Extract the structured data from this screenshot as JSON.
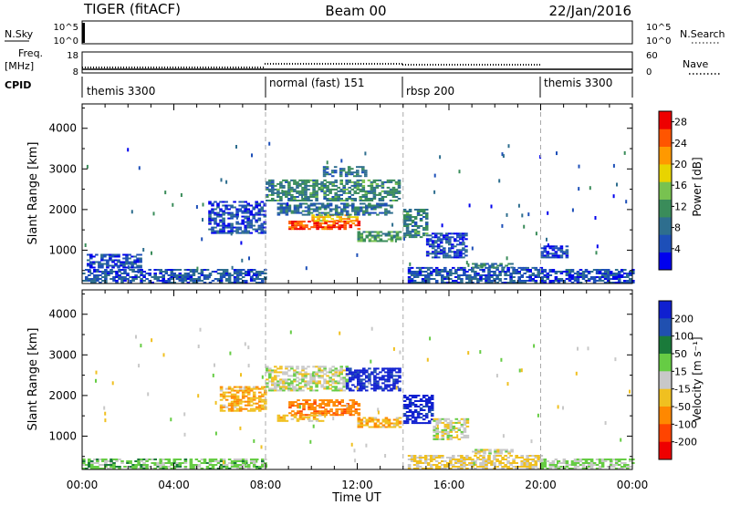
{
  "header": {
    "station": "TIGER (fitACF)",
    "beam": "Beam 00",
    "date": "22/Jan/2016"
  },
  "top_panels": {
    "nsky_label": "N.Sky",
    "nsky_ticks": [
      "10^5",
      "10^0"
    ],
    "nsearch_label": "N.Search",
    "freq_label_line1": "Freq.",
    "freq_label_line2": "[MHz]",
    "freq_ticks": [
      "18",
      "8"
    ],
    "nave_label": "Nave",
    "nave_ticks": [
      "60",
      "0"
    ],
    "cpid_label": "CPID",
    "cpid_segments": [
      {
        "label": "themis 3300",
        "start_hour": 0,
        "end_hour": 8
      },
      {
        "label": "normal (fast) 151",
        "start_hour": 8,
        "end_hour": 14
      },
      {
        "label": "rbsp 200",
        "start_hour": 14,
        "end_hour": 20
      },
      {
        "label": "themis 3300",
        "start_hour": 20,
        "end_hour": 24
      }
    ]
  },
  "colors": {
    "power_scale": [
      "#0000ee",
      "#1d4fb8",
      "#2e6e8e",
      "#3a8c5a",
      "#78c250",
      "#e8d400",
      "#ff9900",
      "#ff5500",
      "#ee0000"
    ],
    "velocity_scale": [
      "#1020d0",
      "#2050b0",
      "#1a7a3a",
      "#66cc44",
      "#c8c8c8",
      "#f0c020",
      "#ff8800",
      "#ff4400",
      "#ee0000"
    ],
    "gray_data": "#c0c0c0",
    "vline": "#aaaaaa"
  },
  "chart_data": [
    {
      "type": "heatmap",
      "title": "",
      "quantity": "Power",
      "xlabel": "",
      "ylabel": "Slant Range [km]",
      "xlim": [
        0,
        24
      ],
      "ylim": [
        180,
        4600
      ],
      "x_ticks": [
        "00:00",
        "04:00",
        "08:00",
        "12:00",
        "16:00",
        "20:00",
        "00:00"
      ],
      "y_ticks": [
        1000,
        2000,
        3000,
        4000
      ],
      "colorbar": {
        "label": "Power [dB]",
        "ticks": [
          4,
          8,
          12,
          16,
          20,
          24,
          28
        ],
        "range": [
          0,
          30
        ]
      },
      "regions": [
        {
          "t0": 0.0,
          "t1": 8.0,
          "r0": 180,
          "r1": 500,
          "value": 6
        },
        {
          "t0": 0.2,
          "t1": 2.5,
          "r0": 550,
          "r1": 900,
          "value": 5
        },
        {
          "t0": 5.5,
          "t1": 8.0,
          "r0": 1400,
          "r1": 2200,
          "value": 5
        },
        {
          "t0": 8.0,
          "t1": 13.8,
          "r0": 2200,
          "r1": 2700,
          "value": 10
        },
        {
          "t0": 10.5,
          "t1": 12.3,
          "r0": 2800,
          "r1": 3050,
          "value": 8
        },
        {
          "t0": 9.0,
          "t1": 12.0,
          "r0": 1500,
          "r1": 1700,
          "value": 26
        },
        {
          "t0": 10.0,
          "t1": 12.0,
          "r0": 1700,
          "r1": 1850,
          "value": 20
        },
        {
          "t0": 8.5,
          "t1": 13.5,
          "r0": 1850,
          "r1": 2150,
          "value": 8
        },
        {
          "t0": 12.0,
          "t1": 13.8,
          "r0": 1200,
          "r1": 1450,
          "value": 12
        },
        {
          "t0": 14.0,
          "t1": 15.0,
          "r0": 1300,
          "r1": 2000,
          "value": 10
        },
        {
          "t0": 15.0,
          "t1": 16.8,
          "r0": 800,
          "r1": 1400,
          "value": 5
        },
        {
          "t0": 14.2,
          "t1": 20.0,
          "r0": 180,
          "r1": 550,
          "value": 6
        },
        {
          "t0": 17.0,
          "t1": 18.8,
          "r0": 550,
          "r1": 650,
          "value": 9
        },
        {
          "t0": 20.0,
          "t1": 24.0,
          "r0": 180,
          "r1": 500,
          "value": 5
        },
        {
          "t0": 20.0,
          "t1": 21.2,
          "r0": 800,
          "r1": 1100,
          "value": 4
        }
      ]
    },
    {
      "type": "heatmap",
      "title": "",
      "quantity": "Velocity",
      "xlabel": "Time UT",
      "ylabel": "Slant Range [km]",
      "xlim": [
        0,
        24
      ],
      "ylim": [
        180,
        4600
      ],
      "x_ticks": [
        "00:00",
        "04:00",
        "08:00",
        "12:00",
        "16:00",
        "20:00",
        "00:00"
      ],
      "y_ticks": [
        1000,
        2000,
        3000,
        4000
      ],
      "colorbar": {
        "label": "Velocity [m s⁻¹]",
        "ticks": [
          "200",
          "100",
          "50",
          "15",
          "-15",
          "-50",
          "-100",
          "-200"
        ]
      },
      "regions": [
        {
          "t0": 0.0,
          "t1": 8.0,
          "r0": 180,
          "r1": 450,
          "value": 30
        },
        {
          "t0": 6.0,
          "t1": 8.0,
          "r0": 1600,
          "r1": 2200,
          "value": -40
        },
        {
          "t0": 8.0,
          "t1": 11.5,
          "r0": 2100,
          "r1": 2700,
          "value": 0
        },
        {
          "t0": 11.5,
          "t1": 13.8,
          "r0": 2100,
          "r1": 2650,
          "value": 220
        },
        {
          "t0": 9.0,
          "t1": 12.0,
          "r0": 1500,
          "r1": 1900,
          "value": -80
        },
        {
          "t0": 8.5,
          "t1": 10.5,
          "r0": 1350,
          "r1": 1500,
          "value": -30
        },
        {
          "t0": 12.0,
          "t1": 13.8,
          "r0": 1200,
          "r1": 1450,
          "value": -40
        },
        {
          "t0": 14.0,
          "t1": 15.3,
          "r0": 1300,
          "r1": 2000,
          "value": 220
        },
        {
          "t0": 15.3,
          "t1": 16.8,
          "r0": 900,
          "r1": 1400,
          "value": 0
        },
        {
          "t0": 14.2,
          "t1": 20.0,
          "r0": 180,
          "r1": 500,
          "value": -20
        },
        {
          "t0": 17.0,
          "t1": 18.8,
          "r0": 550,
          "r1": 650,
          "value": 0
        },
        {
          "t0": 20.0,
          "t1": 24.0,
          "r0": 180,
          "r1": 450,
          "value": 20
        }
      ]
    }
  ]
}
